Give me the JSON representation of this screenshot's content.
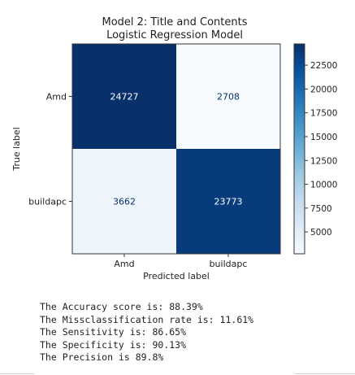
{
  "chart_data": {
    "type": "heatmap",
    "title_lines": [
      "Model 2: Title and Contents",
      "Logistic Regression Model"
    ],
    "xlabel": "Predicted label",
    "ylabel": "True label",
    "x_categories": [
      "Amd",
      "buildapc"
    ],
    "y_categories": [
      "Amd",
      "buildapc"
    ],
    "matrix": [
      [
        24727,
        2708
      ],
      [
        3662,
        23773
      ]
    ],
    "colormap": "Blues",
    "colorbar": {
      "range": [
        2708,
        24727
      ],
      "ticks": [
        5000,
        7500,
        10000,
        12500,
        15000,
        17500,
        20000,
        22500
      ],
      "tick_labels": [
        "5000",
        "7500",
        "10000",
        "12500",
        "15000",
        "17500",
        "20000",
        "22500"
      ]
    },
    "grid": false
  },
  "metrics": [
    "The Accuracy score is: 88.39%",
    "The Missclassification rate is: 11.61%",
    "The Sensitivity is: 86.65%",
    "The Specificity is: 90.13%",
    "The Precision is 89.8%"
  ]
}
